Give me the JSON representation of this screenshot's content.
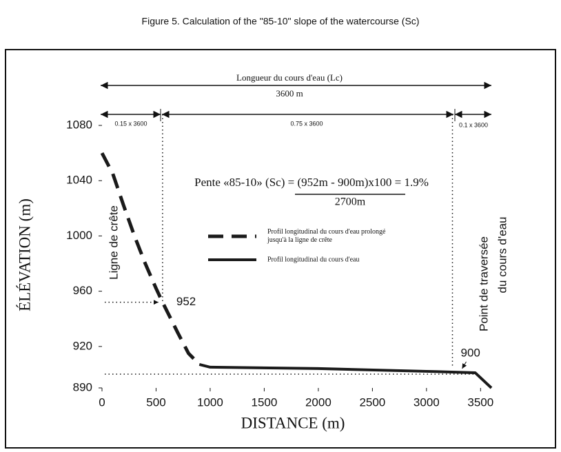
{
  "chart_data": {
    "type": "line",
    "title": "Figure 5. Calculation of the \"85-10\" slope of the watercourse (Sc)",
    "x_label": "DISTANCE (m)",
    "y_label": "ÉLÉVATION (m)",
    "xlim": [
      0,
      3600
    ],
    "ylim": [
      890,
      1080
    ],
    "xticks": [
      0,
      500,
      1000,
      1500,
      2000,
      2500,
      3000,
      3500
    ],
    "yticks": [
      890,
      920,
      960,
      1000,
      1040,
      1080
    ],
    "series": [
      {
        "name": "Profil longitudinal du cours d'eau prolongé jusqu'à la ligne de crête",
        "color": "#1a1a1a",
        "dashed": true,
        "x": [
          0,
          100,
          200,
          300,
          400,
          500,
          560,
          700,
          800,
          900
        ],
        "values": [
          1060,
          1045,
          1022,
          1000,
          980,
          962,
          952,
          930,
          915,
          907
        ]
      },
      {
        "name": "Profil longitudinal du cours d'eau",
        "color": "#1a1a1a",
        "dashed": false,
        "x": [
          900,
          1000,
          2000,
          3000,
          3450,
          3600
        ],
        "values": [
          907,
          905,
          904,
          902,
          901,
          890
        ]
      }
    ],
    "markers": [
      {
        "x": 560,
        "y": 952,
        "label": "952"
      },
      {
        "x": 3240,
        "y": 900,
        "label": "900"
      }
    ],
    "annotations": {
      "length_title": "Longueur du cours d'eau (Lc)",
      "length_value": "3600 m",
      "part_1": "0.15 x 3600",
      "part_2": "0.75 x 3600",
      "part_3": "0.1 x 3600",
      "formula": "Pente «85-10» (Sc) = (952m - 900m)x100 = 1.9%",
      "denominator": "2700m",
      "crest": "Ligne de crête",
      "crossing_1": "Point de traversée",
      "crossing_2": "du cours d'eau"
    }
  }
}
